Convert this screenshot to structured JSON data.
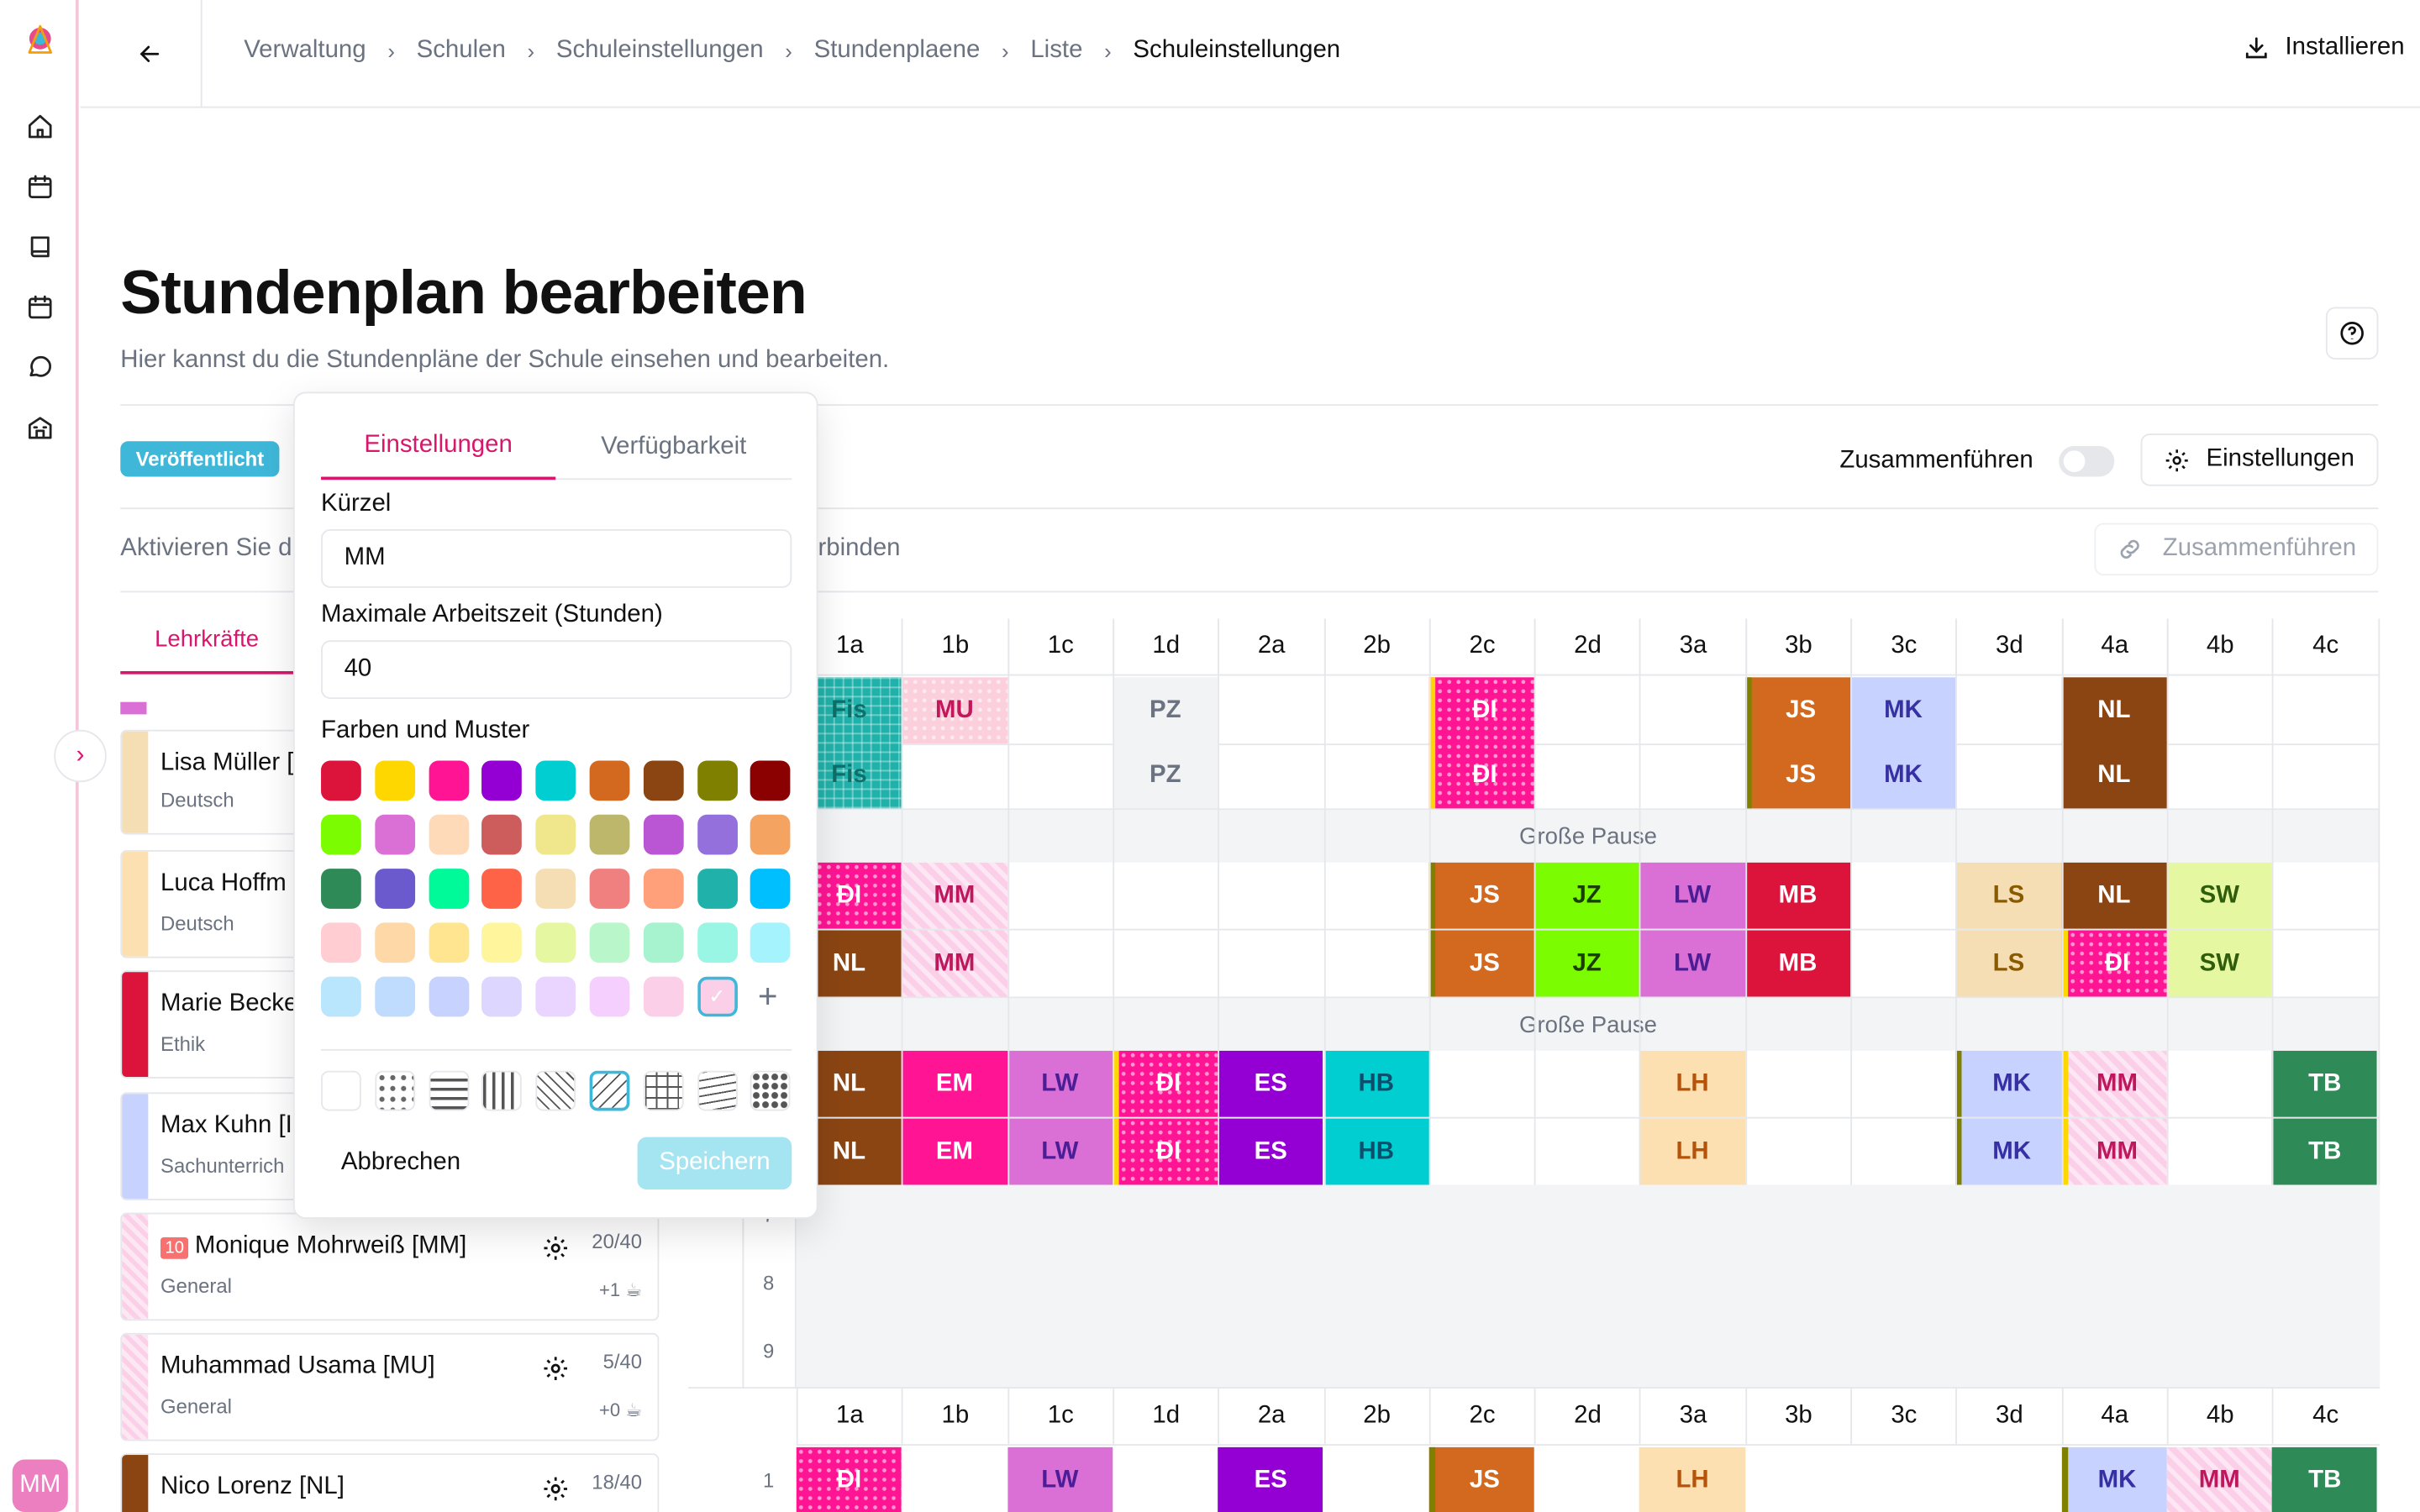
{
  "nav": {
    "rail_icons": [
      "logo-icon",
      "home-icon",
      "calendar-icon",
      "book-icon",
      "calendar-icon",
      "chat-icon",
      "school-icon"
    ],
    "avatar": "MM"
  },
  "breadcrumb": [
    "Verwaltung",
    "Schulen",
    "Schuleinstellungen",
    "Stundenplaene",
    "Liste",
    "Schuleinstellungen"
  ],
  "install_label": "Installieren",
  "page": {
    "title": "Stundenplan bearbeiten",
    "subtitle": "Hier kannst du die Stundenpläne der Schule einsehen und bearbeiten."
  },
  "status_badge": "Veröffentlicht",
  "merge_label": "Zusammenführen",
  "settings_label": "Einstellungen",
  "activate_text": "Aktivieren Sie d",
  "activate_text_end": "rbinden",
  "merge_button": "Zusammenführen",
  "teacher_tab": "Lehrkräfte",
  "teachers": [
    {
      "name": "Lisa Müller [",
      "subject": "Deutsch",
      "color": "#f5deb3"
    },
    {
      "name": "Luca Hoffm",
      "subject": "Deutsch",
      "color": "#fde0b2"
    },
    {
      "name": "Marie Becke",
      "subject": "Ethik",
      "color": "#dc143c"
    },
    {
      "name": "Max Kuhn [I",
      "subject": "Sachunterrich",
      "color": "#c7d2fe"
    },
    {
      "name": "Monique Mohrweiß [MM]",
      "subject": "General",
      "hours": "20/40",
      "extra": "+1",
      "badge": "10",
      "color": "#fbcfe8"
    },
    {
      "name": "Muhammad Usama [MU]",
      "subject": "General",
      "hours": "5/40",
      "extra": "+0",
      "color": "#fbcfe8"
    },
    {
      "name": "Nico Lorenz [NL]",
      "subject": "",
      "hours": "18/40",
      "color": "#8b4513"
    }
  ],
  "classes": [
    "1a",
    "1b",
    "1c",
    "1d",
    "2a",
    "2b",
    "2c",
    "2d",
    "3a",
    "3b",
    "3c",
    "3d",
    "4a",
    "4b",
    "4c"
  ],
  "pause_label": "Große Pause",
  "period_numbers": [
    "7",
    "8",
    "9",
    "1"
  ],
  "grid_rows": [
    [
      "Fis",
      "MU",
      "",
      "PZ",
      "",
      "",
      "ĐI",
      "",
      "",
      "JS",
      "MK",
      "",
      "NL",
      "",
      ""
    ],
    [
      "Fis",
      "",
      "",
      "PZ",
      "",
      "",
      "ĐI",
      "",
      "",
      "JS",
      "MK",
      "",
      "NL",
      "",
      ""
    ],
    [
      "ĐI",
      "MM",
      "",
      "",
      "",
      "",
      "JS",
      "JZ",
      "LW",
      "MB",
      "",
      "LS",
      "NL",
      "SW",
      ""
    ],
    [
      "NL",
      "MM",
      "",
      "",
      "",
      "",
      "JS",
      "JZ",
      "LW",
      "MB",
      "",
      "LS",
      "ĐI",
      "SW",
      ""
    ],
    [
      "NL",
      "EM",
      "LW",
      "ĐI",
      "ES",
      "HB",
      "",
      "",
      "LH",
      "",
      "",
      "MK",
      "MM",
      "",
      "TB"
    ],
    [
      "NL",
      "EM",
      "LW",
      "ĐI",
      "ES",
      "HB",
      "",
      "",
      "LH",
      "",
      "",
      "MK",
      "MM",
      "",
      "TB"
    ]
  ],
  "bottom_row": [
    "ĐI",
    "",
    "LW",
    "",
    "ES",
    "",
    "JS",
    "",
    "LH",
    "",
    "",
    "",
    "MK",
    "MM",
    "TB"
  ],
  "popup": {
    "tabs": [
      "Einstellungen",
      "Verfügbarkeit"
    ],
    "short_label": "Kürzel",
    "short_value": "MM",
    "hours_label": "Maximale Arbeitszeit (Stunden)",
    "hours_value": "40",
    "colors_label": "Farben und Muster",
    "cancel": "Abbrechen",
    "save": "Speichern",
    "palette": [
      [
        "#dc143c",
        "#ffd700",
        "#ff1493",
        "#9400d3",
        "#00ced1",
        "#d2691e",
        "#8b4513",
        "#808000",
        "#8b0000"
      ],
      [
        "#7cfc00",
        "#da70d6",
        "#ffdab9",
        "#cd5c5c",
        "#f0e68c",
        "#bdb76b",
        "#ba55d3",
        "#9370db",
        "#f4a460"
      ],
      [
        "#2e8b57",
        "#6a5acd",
        "#00fa9a",
        "#ff6347",
        "#f5deb3",
        "#f08080",
        "#ffa07a",
        "#20b2aa",
        "#00bfff"
      ],
      [
        "#ffcdd2",
        "#ffd8a8",
        "#ffe58f",
        "#fff59d",
        "#e6f7a1",
        "#b9f6ca",
        "#a7f3d0",
        "#99f6e4",
        "#a5f3fc"
      ],
      [
        "#bae6fd",
        "#bfdbfe",
        "#c7d2fe",
        "#ddd6fe",
        "#e9d5ff",
        "#f5d0fe",
        "#fbcfe8",
        "#fbcfe8"
      ]
    ]
  },
  "help_label": "?"
}
